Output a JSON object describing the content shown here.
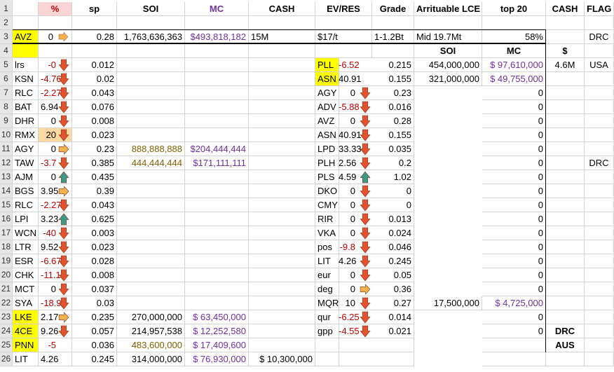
{
  "colors": {
    "header_bg": "#e6e6e6",
    "highlight_yellow": "#ffff00",
    "pink": "#fbd5d6",
    "orange_fill": "#fbd9a3",
    "negative_red": "#c00000",
    "mc_purple": "#7030a0",
    "soi_gold": "#806000",
    "arrow_down": "#e2522c",
    "arrow_side": "#f2b24e",
    "arrow_up": "#3a9a86"
  },
  "sheet": {
    "column_headers": {
      "A": "",
      "B": "%",
      "C": "sp",
      "D": "SOI",
      "E": "MC",
      "F": "CASH",
      "G": "EV/RES",
      "H": "Grade",
      "I": "Arrituable LCE",
      "J": "top 20",
      "K": "CASH",
      "L": "FLAG"
    },
    "row_numbers": [
      "1",
      "2",
      "3",
      "4",
      "5",
      "6",
      "7",
      "8",
      "9",
      "10",
      "11",
      "12",
      "13",
      "14",
      "15",
      "16",
      "17",
      "18",
      "19",
      "20",
      "21",
      "22",
      "23",
      "24",
      "25",
      "26"
    ],
    "row3": {
      "ticker": "AVZ",
      "pct": "0",
      "arrow": "side",
      "sp": "0.28",
      "soi": "1,763,636,363",
      "mc": "$493,818,182",
      "cash": "15M",
      "ev_res": "$17/t",
      "grade": "1-1.2Bt",
      "lce": "Mid 19.7Mt",
      "top20": "58%",
      "flag": "DRC"
    },
    "row4_subheaders": {
      "soi": "SOI",
      "mc": "MC",
      "cash": "$"
    },
    "left_rows": [
      {
        "row": "5",
        "ticker": "lrs",
        "pct": "-0",
        "arrow": "down",
        "sp": "0.012",
        "soi": "",
        "mc": "",
        "cash": ""
      },
      {
        "row": "6",
        "ticker": "KSN",
        "pct": "-4.76",
        "arrow": "down",
        "sp": "0.02",
        "soi": "",
        "mc": "",
        "cash": ""
      },
      {
        "row": "7",
        "ticker": "RLC",
        "pct": "-2.27",
        "arrow": "down",
        "sp": "0.043",
        "soi": "",
        "mc": "",
        "cash": ""
      },
      {
        "row": "8",
        "ticker": "BAT",
        "pct": "6.94",
        "arrow": "down",
        "sp": "0.076",
        "soi": "",
        "mc": "",
        "cash": ""
      },
      {
        "row": "9",
        "ticker": "DHR",
        "pct": "0",
        "arrow": "down",
        "sp": "0.008",
        "soi": "",
        "mc": "",
        "cash": ""
      },
      {
        "row": "10",
        "ticker": "RMX",
        "pct": "20",
        "arrow": "down",
        "sp": "0.023",
        "soi": "",
        "mc": "",
        "cash": ""
      },
      {
        "row": "11",
        "ticker": "AGY",
        "pct": "0",
        "arrow": "side",
        "sp": "0.23",
        "soi": "888,888,888",
        "mc": "$204,444,444",
        "cash": ""
      },
      {
        "row": "12",
        "ticker": "TAW",
        "pct": "-3.7",
        "arrow": "down",
        "sp": "0.385",
        "soi": "444,444,444",
        "mc": "$171,111,111",
        "cash": ""
      },
      {
        "row": "13",
        "ticker": "AJM",
        "pct": "0",
        "arrow": "up",
        "sp": "0.435",
        "soi": "",
        "mc": "",
        "cash": ""
      },
      {
        "row": "14",
        "ticker": "BGS",
        "pct": "3.95",
        "arrow": "side",
        "sp": "0.39",
        "soi": "",
        "mc": "",
        "cash": ""
      },
      {
        "row": "15",
        "ticker": "RLC",
        "pct": "-2.27",
        "arrow": "down",
        "sp": "0.043",
        "soi": "",
        "mc": "",
        "cash": ""
      },
      {
        "row": "16",
        "ticker": "LPI",
        "pct": "3.23",
        "arrow": "up",
        "sp": "0.625",
        "soi": "",
        "mc": "",
        "cash": ""
      },
      {
        "row": "17",
        "ticker": "WCN",
        "pct": "-40",
        "arrow": "down",
        "sp": "0.003",
        "soi": "",
        "mc": "",
        "cash": ""
      },
      {
        "row": "18",
        "ticker": "LTR",
        "pct": "9.52",
        "arrow": "down",
        "sp": "0.023",
        "soi": "",
        "mc": "",
        "cash": ""
      },
      {
        "row": "19",
        "ticker": "ESR",
        "pct": "-6.67",
        "arrow": "down",
        "sp": "0.028",
        "soi": "",
        "mc": "",
        "cash": ""
      },
      {
        "row": "20",
        "ticker": "CHK",
        "pct": "-11.11",
        "arrow": "down",
        "sp": "0.008",
        "soi": "",
        "mc": "",
        "cash": ""
      },
      {
        "row": "21",
        "ticker": "MCT",
        "pct": "0",
        "arrow": "down",
        "sp": "0.037",
        "soi": "",
        "mc": "",
        "cash": ""
      },
      {
        "row": "22",
        "ticker": "SYA",
        "pct": "-18.92",
        "arrow": "down",
        "sp": "0.03",
        "soi": "",
        "mc": "",
        "cash": ""
      },
      {
        "row": "23",
        "ticker": "LKE",
        "pct": "2.17",
        "arrow": "side",
        "sp": "0.235",
        "soi": "270,000,000",
        "mc": "$ 63,450,000",
        "cash": ""
      },
      {
        "row": "24",
        "ticker": "4CE",
        "pct": "9.26",
        "arrow": "down",
        "sp": "0.057",
        "soi": "214,957,538",
        "mc": "$ 12,252,580",
        "cash": ""
      },
      {
        "row": "25",
        "ticker": "PNN",
        "pct": "-5",
        "arrow": "",
        "sp": "0.036",
        "soi": "483,600,000",
        "mc": "$ 17,409,600",
        "cash": ""
      },
      {
        "row": "26",
        "ticker": "LIT",
        "pct": "4.26",
        "arrow": "",
        "sp": "0.245",
        "soi": "314,000,000",
        "mc": "$ 76,930,000",
        "cash": "$ 10,300,000"
      }
    ],
    "right_rows": [
      {
        "row": "5",
        "ticker": "PLL",
        "pct": "-6.52",
        "arrow": "",
        "sp": "0.215",
        "soi": "454,000,000",
        "mc": "$ 97,610,000",
        "k": "4.6M",
        "l": "USA"
      },
      {
        "row": "6",
        "ticker": "ASN",
        "pct": "40.91",
        "arrow": "",
        "sp": "0.155",
        "soi": "321,000,000",
        "mc": "$ 49,755,000",
        "k": "",
        "l": ""
      },
      {
        "row": "7",
        "ticker": "AGY",
        "pct": "0",
        "arrow": "down",
        "sp": "0.23",
        "soi": "",
        "mc": "0",
        "k": "",
        "l": ""
      },
      {
        "row": "8",
        "ticker": "ADV",
        "pct": "-5.88",
        "arrow": "down",
        "sp": "0.016",
        "soi": "",
        "mc": "0",
        "k": "",
        "l": ""
      },
      {
        "row": "9",
        "ticker": "AVZ",
        "pct": "0",
        "arrow": "down",
        "sp": "0.28",
        "soi": "",
        "mc": "0",
        "k": "",
        "l": ""
      },
      {
        "row": "10",
        "ticker": "ASN",
        "pct": "40.91",
        "arrow": "down",
        "sp": "0.155",
        "soi": "",
        "mc": "0",
        "k": "",
        "l": ""
      },
      {
        "row": "11",
        "ticker": "LPD",
        "pct": "33.33",
        "arrow": "down",
        "sp": "0.035",
        "soi": "",
        "mc": "0",
        "k": "",
        "l": ""
      },
      {
        "row": "12",
        "ticker": "PLH",
        "pct": "2.56",
        "arrow": "down",
        "sp": "0.2",
        "soi": "",
        "mc": "0",
        "k": "",
        "l": "DRC"
      },
      {
        "row": "13",
        "ticker": "PLS",
        "pct": "4.59",
        "arrow": "up",
        "sp": "1.02",
        "soi": "",
        "mc": "0",
        "k": "",
        "l": ""
      },
      {
        "row": "14",
        "ticker": "DKO",
        "pct": "0",
        "arrow": "down",
        "sp": "0",
        "soi": "",
        "mc": "0",
        "k": "",
        "l": ""
      },
      {
        "row": "15",
        "ticker": "CMY",
        "pct": "0",
        "arrow": "down",
        "sp": "0",
        "soi": "",
        "mc": "0",
        "k": "",
        "l": ""
      },
      {
        "row": "16",
        "ticker": "RIR",
        "pct": "0",
        "arrow": "down",
        "sp": "0.013",
        "soi": "",
        "mc": "0",
        "k": "",
        "l": ""
      },
      {
        "row": "17",
        "ticker": "VKA",
        "pct": "0",
        "arrow": "down",
        "sp": "0.024",
        "soi": "",
        "mc": "0",
        "k": "",
        "l": ""
      },
      {
        "row": "18",
        "ticker": "pos",
        "pct": "-9.8",
        "arrow": "down",
        "sp": "0.046",
        "soi": "",
        "mc": "0",
        "k": "",
        "l": ""
      },
      {
        "row": "19",
        "ticker": "LIT",
        "pct": "4.26",
        "arrow": "down",
        "sp": "0.245",
        "soi": "",
        "mc": "0",
        "k": "",
        "l": ""
      },
      {
        "row": "20",
        "ticker": "eur",
        "pct": "0",
        "arrow": "down",
        "sp": "0.05",
        "soi": "",
        "mc": "0",
        "k": "",
        "l": ""
      },
      {
        "row": "21",
        "ticker": "deg",
        "pct": "0",
        "arrow": "side",
        "sp": "0.36",
        "soi": "",
        "mc": "0",
        "k": "",
        "l": ""
      },
      {
        "row": "22",
        "ticker": "MQR",
        "pct": "10",
        "arrow": "down",
        "sp": "0.27",
        "soi": "17,500,000",
        "mc": "$ 4,725,000",
        "k": "",
        "l": ""
      },
      {
        "row": "23",
        "ticker": "qur",
        "pct": "-6.25",
        "arrow": "down",
        "sp": "0.014",
        "soi": "",
        "mc": "0",
        "k": "",
        "l": ""
      },
      {
        "row": "24",
        "ticker": "gpp",
        "pct": "-4.55",
        "arrow": "down",
        "sp": "0.021",
        "soi": "",
        "mc": "0",
        "k": "DRC",
        "l": ""
      },
      {
        "row": "25",
        "ticker": "",
        "pct": "",
        "arrow": "",
        "sp": "",
        "soi": "",
        "mc": "",
        "k": "AUS",
        "l": ""
      },
      {
        "row": "26",
        "ticker": "",
        "pct": "",
        "arrow": "",
        "sp": "",
        "soi": "",
        "mc": "",
        "k": "",
        "l": ""
      }
    ]
  }
}
